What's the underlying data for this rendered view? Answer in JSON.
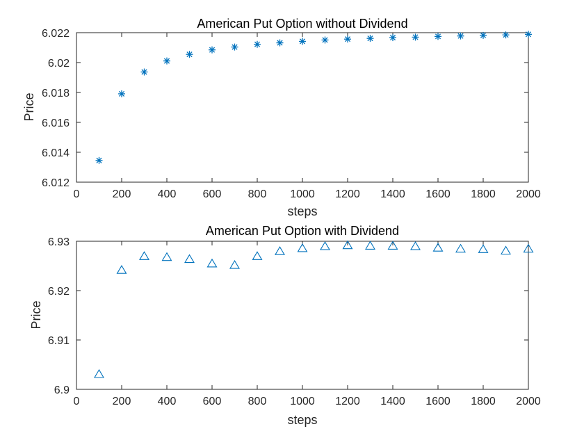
{
  "chart_data": [
    {
      "type": "scatter",
      "title": "American Put Option without Dividend",
      "xlabel": "steps",
      "ylabel": "Price",
      "xlim": [
        0,
        2000
      ],
      "ylim": [
        6.012,
        6.022
      ],
      "xticks": [
        "0",
        "200",
        "400",
        "600",
        "800",
        "1000",
        "1200",
        "1400",
        "1600",
        "1800",
        "2000"
      ],
      "yticks": [
        "6.012",
        "6.014",
        "6.016",
        "6.018",
        "6.02",
        "6.022"
      ],
      "marker": "asterisk",
      "color": "#0072bd",
      "grid": false,
      "series": [
        {
          "x": [
            100,
            200,
            300,
            400,
            500,
            600,
            700,
            800,
            900,
            1000,
            1100,
            1200,
            1300,
            1400,
            1500,
            1600,
            1700,
            1800,
            1900,
            2000
          ],
          "y": [
            6.01345,
            6.01791,
            6.01937,
            6.02011,
            6.02055,
            6.02085,
            6.02104,
            6.02122,
            6.02132,
            6.02142,
            6.02151,
            6.02157,
            6.02162,
            6.02167,
            6.0217,
            6.02175,
            6.02178,
            6.02182,
            6.02185,
            6.02189
          ]
        }
      ]
    },
    {
      "type": "scatter",
      "title": "American Put Option with Dividend",
      "xlabel": "steps",
      "ylabel": "Price",
      "xlim": [
        0,
        2000
      ],
      "ylim": [
        6.9,
        6.93
      ],
      "xticks": [
        "0",
        "200",
        "400",
        "600",
        "800",
        "1000",
        "1200",
        "1400",
        "1600",
        "1800",
        "2000"
      ],
      "yticks": [
        "6.9",
        "6.91",
        "6.92",
        "6.93"
      ],
      "marker": "triangle",
      "color": "#0072bd",
      "grid": false,
      "series": [
        {
          "x": [
            100,
            200,
            300,
            400,
            500,
            600,
            700,
            800,
            900,
            1000,
            1100,
            1200,
            1300,
            1400,
            1500,
            1600,
            1700,
            1800,
            1900,
            2000
          ],
          "y": [
            6.9031,
            6.9242,
            6.927,
            6.9268,
            6.9264,
            6.9255,
            6.9252,
            6.927,
            6.928,
            6.9286,
            6.929,
            6.9292,
            6.9291,
            6.9291,
            6.929,
            6.9287,
            6.9285,
            6.9284,
            6.9281,
            6.9285
          ]
        }
      ]
    }
  ]
}
